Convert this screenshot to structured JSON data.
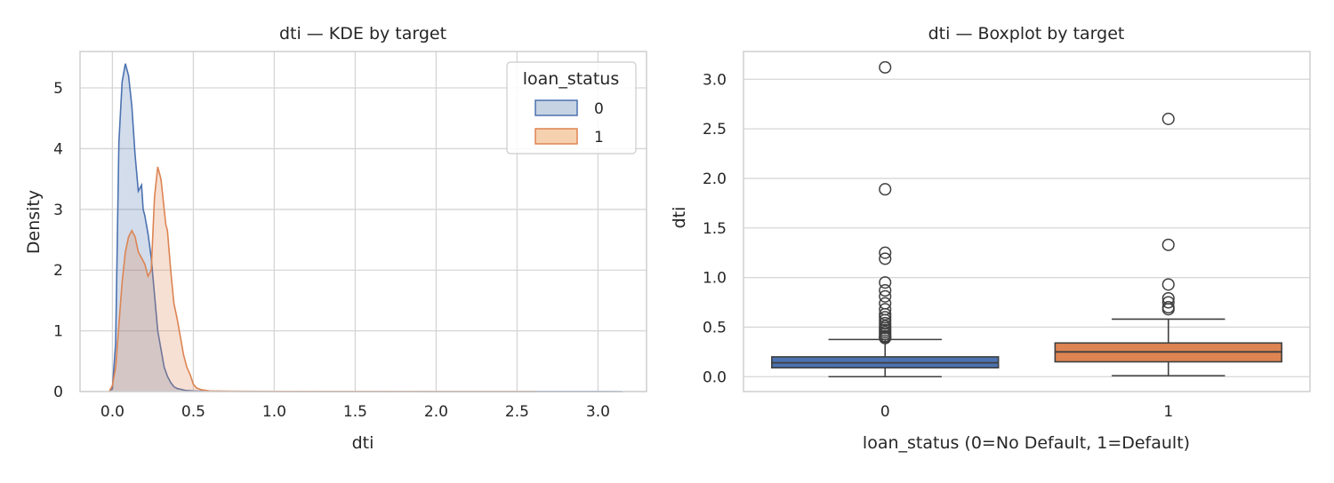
{
  "chart_data": [
    {
      "type": "kde",
      "title": "dti — KDE by target",
      "xlabel": "dti",
      "ylabel": "Density",
      "xlim": [
        -0.2,
        3.3
      ],
      "ylim": [
        0,
        5.6
      ],
      "xticks": [
        0.0,
        0.5,
        1.0,
        1.5,
        2.0,
        2.5,
        3.0
      ],
      "xtick_labels": [
        "0.0",
        "0.5",
        "1.0",
        "1.5",
        "2.0",
        "2.5",
        "3.0"
      ],
      "yticks": [
        0,
        1,
        2,
        3,
        4,
        5
      ],
      "ytick_labels": [
        "0",
        "1",
        "2",
        "3",
        "4",
        "5"
      ],
      "grid": true,
      "legend": {
        "title": "loan_status",
        "position": "top-right",
        "entries": [
          "0",
          "1"
        ]
      },
      "series": [
        {
          "name": "0",
          "color": "#4c72b0",
          "fill": "#c6d3e3",
          "x": [
            -0.02,
            0.0,
            0.02,
            0.04,
            0.06,
            0.08,
            0.1,
            0.12,
            0.14,
            0.16,
            0.18,
            0.19,
            0.2,
            0.22,
            0.24,
            0.26,
            0.28,
            0.3,
            0.32,
            0.34,
            0.36,
            0.38,
            0.4,
            0.45,
            0.5,
            0.6,
            0.8,
            1.0,
            1.5,
            2.0,
            2.5,
            3.0,
            3.15
          ],
          "y": [
            0,
            0.05,
            0.8,
            4.1,
            5.1,
            5.4,
            5.2,
            4.7,
            3.9,
            3.3,
            3.4,
            3.0,
            2.9,
            2.6,
            2.2,
            1.6,
            1.0,
            0.7,
            0.4,
            0.25,
            0.15,
            0.08,
            0.05,
            0.02,
            0.01,
            0.005,
            0.002,
            0.002,
            0.001,
            0.001,
            0.001,
            0.001,
            0
          ]
        },
        {
          "name": "1",
          "color": "#dd8452",
          "fill": "#f6d1b0",
          "x": [
            -0.02,
            0.0,
            0.02,
            0.04,
            0.06,
            0.08,
            0.1,
            0.12,
            0.14,
            0.16,
            0.18,
            0.2,
            0.22,
            0.24,
            0.26,
            0.28,
            0.3,
            0.32,
            0.33,
            0.34,
            0.36,
            0.38,
            0.4,
            0.42,
            0.44,
            0.46,
            0.48,
            0.5,
            0.52,
            0.55,
            0.6,
            0.8,
            1.0,
            1.5,
            2.0,
            2.5,
            2.62
          ],
          "y": [
            0,
            0.1,
            0.4,
            1.1,
            1.8,
            2.3,
            2.55,
            2.65,
            2.55,
            2.3,
            2.2,
            2.1,
            1.9,
            2.0,
            3.2,
            3.7,
            3.5,
            3.0,
            2.75,
            2.65,
            2.0,
            1.45,
            1.2,
            0.9,
            0.6,
            0.4,
            0.28,
            0.12,
            0.06,
            0.03,
            0.01,
            0.005,
            0.003,
            0.002,
            0.001,
            0.001,
            0
          ]
        }
      ]
    },
    {
      "type": "box",
      "title": "dti — Boxplot by target",
      "xlabel": "loan_status (0=No Default, 1=Default)",
      "ylabel": "dti",
      "categories": [
        "0",
        "1"
      ],
      "ylim": [
        -0.15,
        3.28
      ],
      "yticks": [
        0.0,
        0.5,
        1.0,
        1.5,
        2.0,
        2.5,
        3.0
      ],
      "ytick_labels": [
        "0.0",
        "0.5",
        "1.0",
        "1.5",
        "2.0",
        "2.5",
        "3.0"
      ],
      "grid": true,
      "series": [
        {
          "name": "0",
          "color": "#4c72b0",
          "whisker_low": 0.0,
          "q1": 0.09,
          "median": 0.14,
          "q3": 0.2,
          "whisker_high": 0.375,
          "outliers": [
            3.12,
            1.89,
            1.25,
            1.19,
            0.95,
            0.87,
            0.81,
            0.74,
            0.68,
            0.63,
            0.6,
            0.57,
            0.54,
            0.51,
            0.49,
            0.47,
            0.45,
            0.43,
            0.41,
            0.4,
            0.39
          ]
        },
        {
          "name": "1",
          "color": "#dd8452",
          "whisker_low": 0.01,
          "q1": 0.15,
          "median": 0.25,
          "q3": 0.34,
          "whisker_high": 0.58,
          "outliers": [
            2.6,
            1.33,
            0.93,
            0.79,
            0.75,
            0.7,
            0.68
          ]
        }
      ]
    }
  ]
}
